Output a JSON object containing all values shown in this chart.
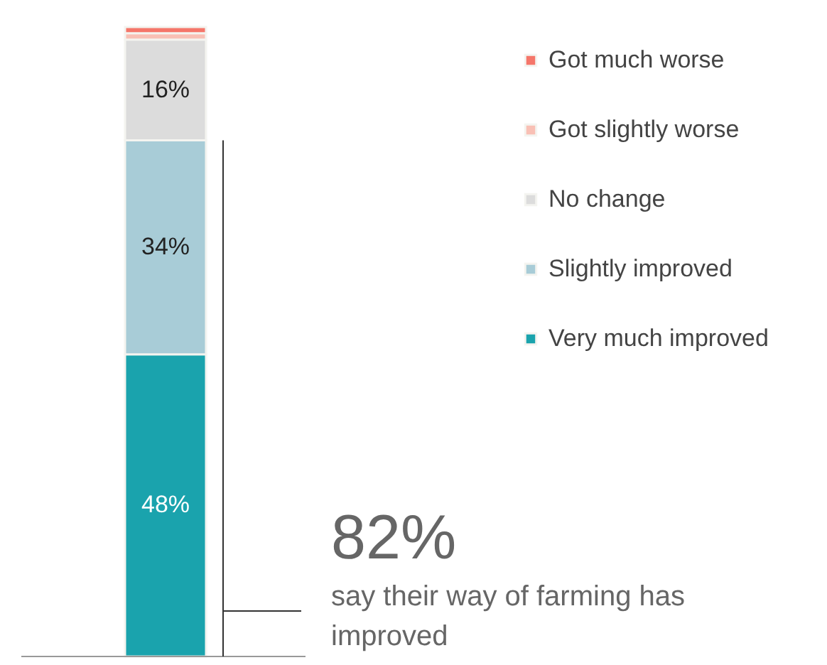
{
  "chart_data": {
    "type": "bar",
    "stacked": true,
    "categories": [
      null
    ],
    "series": [
      {
        "name": "Very much improved",
        "color": "#1aa3ad",
        "values": [
          48
        ],
        "value_labels": [
          "48%"
        ]
      },
      {
        "name": "Slightly improved",
        "color": "#a8ccd7",
        "values": [
          34
        ],
        "value_labels": [
          "34%"
        ]
      },
      {
        "name": "No change",
        "color": "#dcdcdc",
        "values": [
          16
        ],
        "value_labels": [
          "16%"
        ]
      },
      {
        "name": "Got slightly worse",
        "color": "#f9c0b5",
        "values": [
          1
        ],
        "value_labels": [
          null
        ]
      },
      {
        "name": "Got much worse",
        "color": "#f5766a",
        "values": [
          1
        ],
        "value_labels": [
          null
        ]
      }
    ],
    "legend": "right",
    "annotations": [
      "82%",
      "say their way of farming has improved"
    ]
  }
}
